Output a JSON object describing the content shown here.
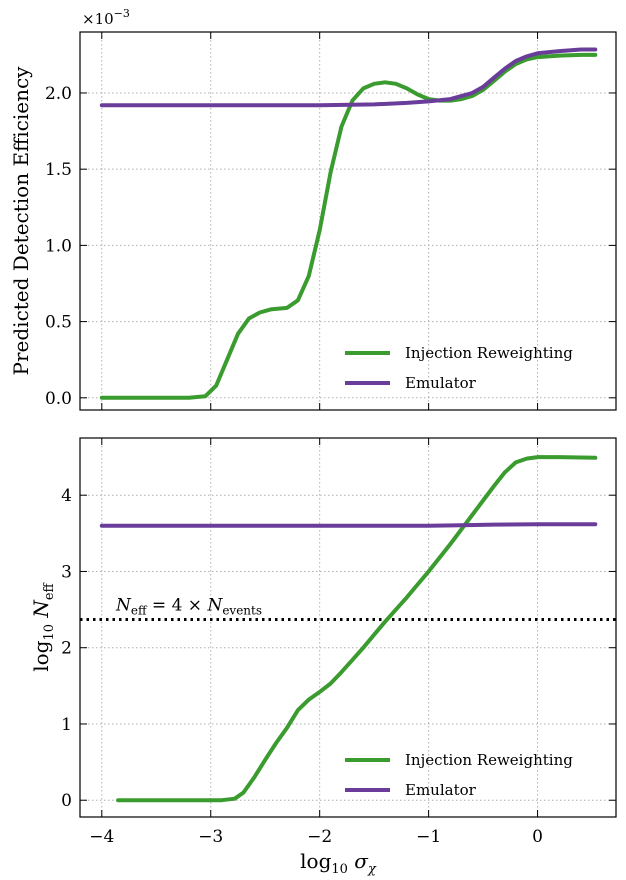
{
  "chart_data": [
    {
      "type": "line",
      "panel": "top",
      "xlabel": "",
      "ylabel": "Predicted Detection Efficiency",
      "y_multiplier": {
        "base": "×10",
        "exp": "−3"
      },
      "xlim": [
        -4.2,
        0.72
      ],
      "ylim": [
        -0.08,
        2.4
      ],
      "grid": true,
      "xticks": [
        -4,
        -3,
        -2,
        -1,
        0
      ],
      "yticks": [
        0.0,
        0.5,
        1.0,
        1.5,
        2.0
      ],
      "ytick_labels": [
        "0.0",
        "0.5",
        "1.0",
        "1.5",
        "2.0"
      ],
      "legend_position": "lower-right",
      "series": [
        {
          "name": "Injection Reweighting",
          "color": "#3a9b2e",
          "points": [
            [
              -4.0,
              0.0
            ],
            [
              -3.5,
              0.0
            ],
            [
              -3.2,
              0.0
            ],
            [
              -3.05,
              0.01
            ],
            [
              -2.95,
              0.08
            ],
            [
              -2.85,
              0.25
            ],
            [
              -2.75,
              0.42
            ],
            [
              -2.65,
              0.52
            ],
            [
              -2.55,
              0.56
            ],
            [
              -2.45,
              0.58
            ],
            [
              -2.3,
              0.59
            ],
            [
              -2.2,
              0.64
            ],
            [
              -2.1,
              0.8
            ],
            [
              -2.0,
              1.1
            ],
            [
              -1.9,
              1.48
            ],
            [
              -1.8,
              1.78
            ],
            [
              -1.7,
              1.95
            ],
            [
              -1.6,
              2.03
            ],
            [
              -1.5,
              2.06
            ],
            [
              -1.4,
              2.07
            ],
            [
              -1.3,
              2.06
            ],
            [
              -1.2,
              2.03
            ],
            [
              -1.1,
              1.99
            ],
            [
              -1.0,
              1.96
            ],
            [
              -0.9,
              1.95
            ],
            [
              -0.8,
              1.95
            ],
            [
              -0.7,
              1.96
            ],
            [
              -0.6,
              1.98
            ],
            [
              -0.5,
              2.02
            ],
            [
              -0.4,
              2.08
            ],
            [
              -0.3,
              2.14
            ],
            [
              -0.2,
              2.19
            ],
            [
              -0.1,
              2.22
            ],
            [
              0.0,
              2.235
            ],
            [
              0.2,
              2.245
            ],
            [
              0.4,
              2.25
            ],
            [
              0.53,
              2.25
            ]
          ]
        },
        {
          "name": "Emulator",
          "color": "#6a3d9a",
          "points": [
            [
              -4.0,
              1.92
            ],
            [
              -3.0,
              1.92
            ],
            [
              -2.0,
              1.92
            ],
            [
              -1.5,
              1.925
            ],
            [
              -1.2,
              1.935
            ],
            [
              -1.0,
              1.945
            ],
            [
              -0.8,
              1.96
            ],
            [
              -0.6,
              2.0
            ],
            [
              -0.5,
              2.04
            ],
            [
              -0.4,
              2.1
            ],
            [
              -0.3,
              2.16
            ],
            [
              -0.2,
              2.21
            ],
            [
              -0.1,
              2.24
            ],
            [
              0.0,
              2.26
            ],
            [
              0.2,
              2.275
            ],
            [
              0.4,
              2.285
            ],
            [
              0.53,
              2.285
            ]
          ]
        }
      ]
    },
    {
      "type": "line",
      "panel": "bottom",
      "xlabel": "log₁₀ σχ",
      "ylabel": "log₁₀ Neff",
      "xlim": [
        -4.2,
        0.72
      ],
      "ylim": [
        -0.22,
        4.75
      ],
      "grid": true,
      "xticks": [
        -4,
        -3,
        -2,
        -1,
        0
      ],
      "xtick_labels": [
        "−4",
        "−3",
        "−2",
        "−1",
        "0"
      ],
      "yticks": [
        0,
        1,
        2,
        3,
        4
      ],
      "ytick_labels": [
        "0",
        "1",
        "2",
        "3",
        "4"
      ],
      "legend_position": "lower-right",
      "hline": {
        "y": 2.37,
        "style": "dotted",
        "color": "#000000"
      },
      "annotation": "Neff = 4 × Nevents",
      "series": [
        {
          "name": "Injection Reweighting",
          "color": "#3a9b2e",
          "points": [
            [
              -3.85,
              0.0
            ],
            [
              -3.2,
              0.0
            ],
            [
              -2.9,
              0.0
            ],
            [
              -2.78,
              0.02
            ],
            [
              -2.7,
              0.1
            ],
            [
              -2.6,
              0.3
            ],
            [
              -2.5,
              0.53
            ],
            [
              -2.4,
              0.75
            ],
            [
              -2.3,
              0.95
            ],
            [
              -2.2,
              1.18
            ],
            [
              -2.1,
              1.32
            ],
            [
              -2.0,
              1.42
            ],
            [
              -1.9,
              1.53
            ],
            [
              -1.8,
              1.68
            ],
            [
              -1.7,
              1.84
            ],
            [
              -1.6,
              2.0
            ],
            [
              -1.5,
              2.17
            ],
            [
              -1.4,
              2.34
            ],
            [
              -1.3,
              2.5
            ],
            [
              -1.2,
              2.66
            ],
            [
              -1.1,
              2.83
            ],
            [
              -1.0,
              3.0
            ],
            [
              -0.9,
              3.18
            ],
            [
              -0.8,
              3.36
            ],
            [
              -0.7,
              3.55
            ],
            [
              -0.6,
              3.74
            ],
            [
              -0.5,
              3.93
            ],
            [
              -0.4,
              4.12
            ],
            [
              -0.3,
              4.3
            ],
            [
              -0.2,
              4.43
            ],
            [
              -0.1,
              4.48
            ],
            [
              0.0,
              4.5
            ],
            [
              0.2,
              4.5
            ],
            [
              0.53,
              4.49
            ]
          ]
        },
        {
          "name": "Emulator",
          "color": "#6a3d9a",
          "points": [
            [
              -4.0,
              3.6
            ],
            [
              -3.0,
              3.6
            ],
            [
              -2.0,
              3.6
            ],
            [
              -1.0,
              3.6
            ],
            [
              -0.7,
              3.605
            ],
            [
              -0.4,
              3.615
            ],
            [
              0.0,
              3.62
            ],
            [
              0.53,
              3.62
            ]
          ]
        }
      ]
    }
  ]
}
